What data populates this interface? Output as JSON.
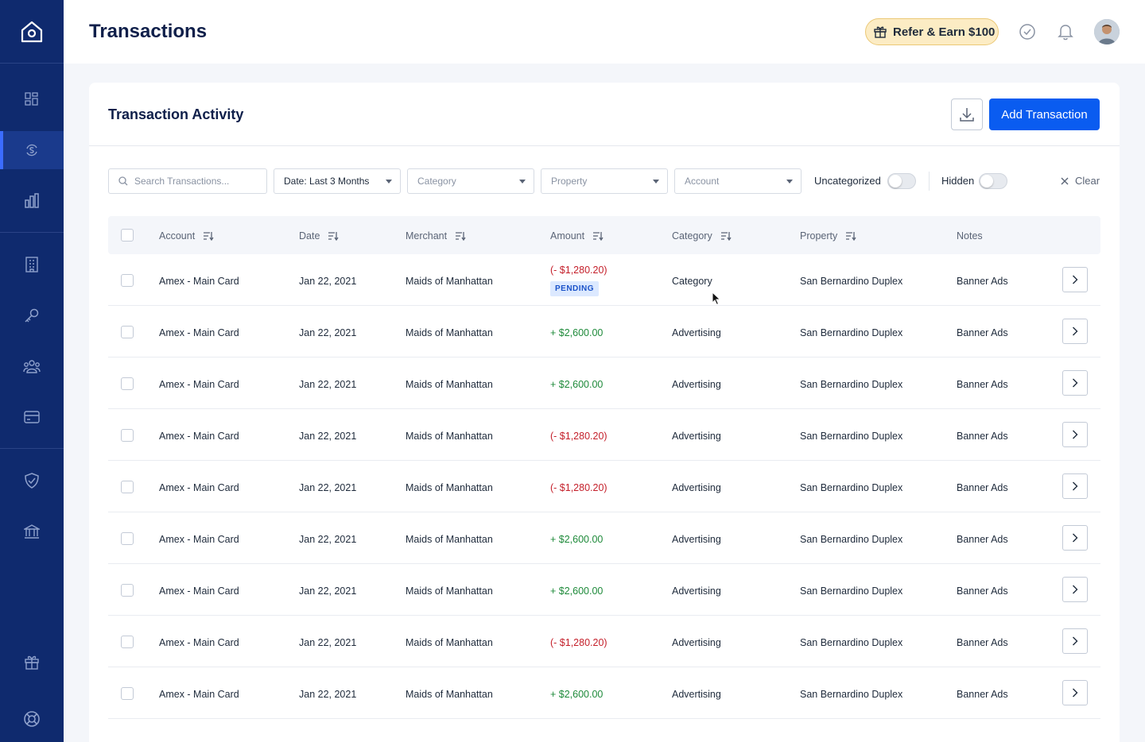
{
  "header": {
    "title": "Transactions",
    "refer_label": "Refer & Earn $100"
  },
  "sidebar": {
    "icons": [
      "home-icon",
      "dashboard-icon",
      "transactions-icon",
      "reports-icon",
      "properties-icon",
      "keys-icon",
      "tenants-icon",
      "payments-icon",
      "insurance-icon",
      "banking-icon",
      "gift-icon",
      "support-icon"
    ],
    "active": "transactions-icon"
  },
  "card": {
    "title": "Transaction Activity",
    "add_label": "Add Transaction"
  },
  "filters": {
    "search_placeholder": "Search Transactions...",
    "date": "Date: Last 3 Months",
    "category": "Category",
    "property": "Property",
    "account": "Account",
    "uncategorized_label": "Uncategorized",
    "hidden_label": "Hidden",
    "clear_label": "Clear"
  },
  "table": {
    "columns": {
      "account": "Account",
      "date": "Date",
      "merchant": "Merchant",
      "amount": "Amount",
      "category": "Category",
      "property": "Property",
      "notes": "Notes"
    },
    "rows": [
      {
        "account": "Amex - Main Card",
        "date": "Jan 22, 2021",
        "merchant": "Maids of Manhattan",
        "amount": "(- $1,280.20)",
        "category": "Category",
        "property": "San Bernardino Duplex",
        "notes": "Banner Ads",
        "badge": "PENDING"
      },
      {
        "account": "Amex - Main Card",
        "date": "Jan 22, 2021",
        "merchant": "Maids of Manhattan",
        "amount": "+ $2,600.00",
        "category": "Advertising",
        "property": "San Bernardino Duplex",
        "notes": "Banner Ads"
      },
      {
        "account": "Amex - Main Card",
        "date": "Jan 22, 2021",
        "merchant": "Maids of Manhattan",
        "amount": "+ $2,600.00",
        "category": "Advertising",
        "property": "San Bernardino Duplex",
        "notes": "Banner Ads"
      },
      {
        "account": "Amex - Main Card",
        "date": "Jan 22, 2021",
        "merchant": "Maids of Manhattan",
        "amount": "(- $1,280.20)",
        "category": "Advertising",
        "property": "San Bernardino Duplex",
        "notes": "Banner Ads"
      },
      {
        "account": "Amex - Main Card",
        "date": "Jan 22, 2021",
        "merchant": "Maids of Manhattan",
        "amount": "(- $1,280.20)",
        "category": "Advertising",
        "property": "San Bernardino Duplex",
        "notes": "Banner Ads"
      },
      {
        "account": "Amex - Main Card",
        "date": "Jan 22, 2021",
        "merchant": "Maids of Manhattan",
        "amount": "+ $2,600.00",
        "category": "Advertising",
        "property": "San Bernardino Duplex",
        "notes": "Banner Ads"
      },
      {
        "account": "Amex - Main Card",
        "date": "Jan 22, 2021",
        "merchant": "Maids of Manhattan",
        "amount": "+ $2,600.00",
        "category": "Advertising",
        "property": "San Bernardino Duplex",
        "notes": "Banner Ads"
      },
      {
        "account": "Amex - Main Card",
        "date": "Jan 22, 2021",
        "merchant": "Maids of Manhattan",
        "amount": "(- $1,280.20)",
        "category": "Advertising",
        "property": "San Bernardino Duplex",
        "notes": "Banner Ads"
      },
      {
        "account": "Amex - Main Card",
        "date": "Jan 22, 2021",
        "merchant": "Maids of Manhattan",
        "amount": "+ $2,600.00",
        "category": "Advertising",
        "property": "San Bernardino Duplex",
        "notes": "Banner Ads"
      }
    ]
  },
  "colors": {
    "sidebar": "#0f2a6e",
    "accent": "#0a5cf0",
    "negative": "#c41f2a",
    "positive": "#1e8a3a"
  }
}
